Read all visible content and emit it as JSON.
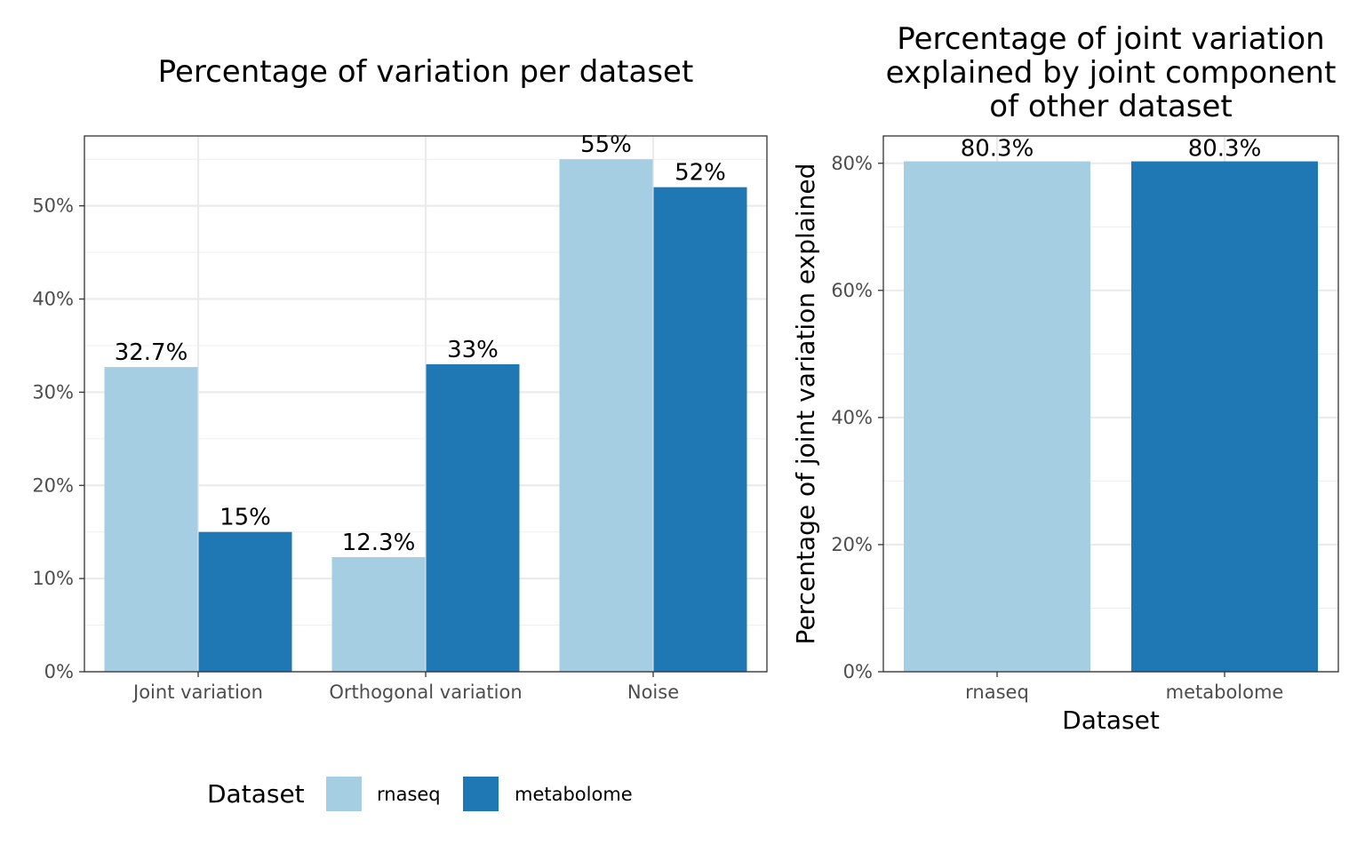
{
  "chart_data": [
    {
      "type": "bar",
      "title": "Percentage of variation per dataset",
      "xlabel": "",
      "ylabel": "",
      "categories": [
        "Joint variation",
        "Orthogonal variation",
        "Noise"
      ],
      "series": [
        {
          "name": "rnaseq",
          "color": "#a6cee3",
          "values": [
            32.7,
            12.3,
            55
          ],
          "labels": [
            "32.7%",
            "12.3%",
            "55%"
          ]
        },
        {
          "name": "metabolome",
          "color": "#1f78b4",
          "values": [
            15,
            33,
            52
          ],
          "labels": [
            "15%",
            "33%",
            "52%"
          ]
        }
      ],
      "ylim": [
        0,
        57.5
      ],
      "yticks": [
        0,
        10,
        20,
        30,
        40,
        50
      ],
      "ytick_labels": [
        "0%",
        "10%",
        "20%",
        "30%",
        "40%",
        "50%"
      ],
      "grid": true,
      "legend": {
        "title": "Dataset",
        "position": "bottom",
        "entries": [
          "rnaseq",
          "metabolome"
        ]
      }
    },
    {
      "type": "bar",
      "title_lines": [
        "Percentage of joint variation",
        "explained by joint component",
        "of other dataset"
      ],
      "xlabel": "Dataset",
      "ylabel": "Percentage of joint variation explained",
      "categories": [
        "rnaseq",
        "metabolome"
      ],
      "values": [
        80.3,
        80.3
      ],
      "labels": [
        "80.3%",
        "80.3%"
      ],
      "colors": [
        "#a6cee3",
        "#1f78b4"
      ],
      "ylim": [
        0,
        84.3
      ],
      "yticks": [
        0,
        20,
        40,
        60,
        80
      ],
      "ytick_labels": [
        "0%",
        "20%",
        "40%",
        "60%",
        "80%"
      ],
      "grid": true
    }
  ]
}
